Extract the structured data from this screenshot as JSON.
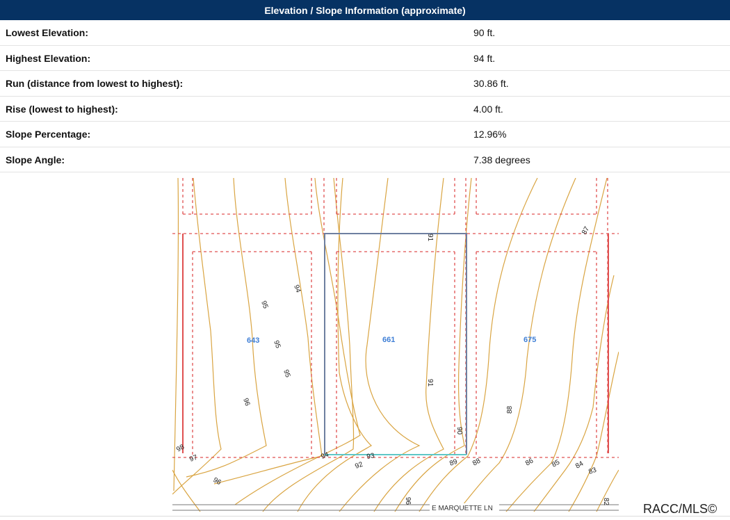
{
  "header": {
    "title": "Elevation / Slope Information (approximate)"
  },
  "rows": [
    {
      "label": "Lowest Elevation:",
      "value": "90 ft."
    },
    {
      "label": "Highest Elevation:",
      "value": "94 ft."
    },
    {
      "label": "Run (distance from lowest to highest):",
      "value": "30.86 ft."
    },
    {
      "label": "Rise (lowest to highest):",
      "value": "4.00 ft."
    },
    {
      "label": "Slope Percentage:",
      "value": "12.96%"
    },
    {
      "label": "Slope Angle:",
      "value": "7.38 degrees"
    }
  ],
  "map": {
    "lot_numbers": [
      "643",
      "661",
      "675"
    ],
    "contour_labels": [
      "91",
      "87",
      "94",
      "95",
      "95",
      "95",
      "96",
      "91",
      "88",
      "90",
      "98",
      "97",
      "94",
      "93",
      "92",
      "89",
      "88",
      "86",
      "85",
      "84",
      "83",
      "96",
      "96",
      "82"
    ],
    "street": "E MARQUETTE LN",
    "colors": {
      "contour": "#d9a441",
      "lot_boundary": "#e05050",
      "subject_parcel": "#6e7fa0",
      "lot_number": "#3f7fd6",
      "frontage": "#5fc7c7"
    }
  },
  "watermark": "RACC/MLS©"
}
